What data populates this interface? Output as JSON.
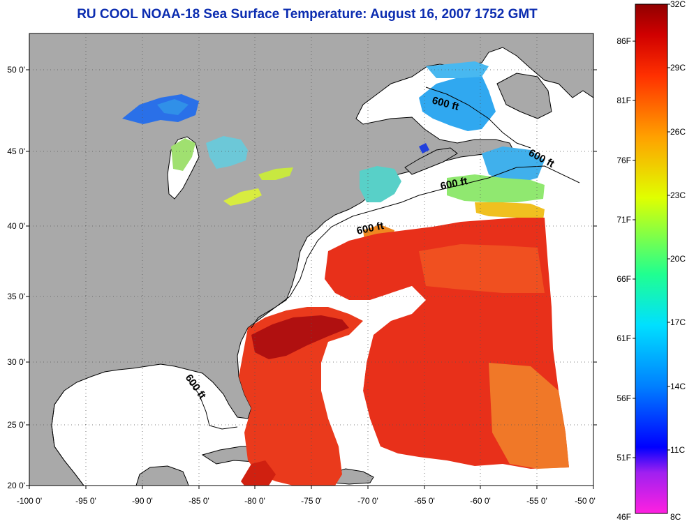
{
  "title": "RU COOL  NOAA-18  Sea Surface Temperature:  August 16, 2007 1752 GMT",
  "map": {
    "lon_ticks": [
      "-100 0'",
      "-95 0'",
      "-90 0'",
      "-85 0'",
      "-80 0'",
      "-75 0'",
      "-70 0'",
      "-65 0'",
      "-60 0'",
      "-55 0'",
      "-50 0'"
    ],
    "lat_ticks": [
      "50 0'",
      "45 0'",
      "40 0'",
      "35 0'",
      "30 0'",
      "25 0'",
      "20 0'"
    ],
    "lon_range": [
      -100,
      -50
    ],
    "lat_range": [
      20,
      52.5
    ],
    "contour_labels": [
      "600 ft",
      "600 ft",
      "600 ft",
      "600 ft",
      "600 ft"
    ],
    "colors": {
      "land": "#a9a9a9",
      "missing": "#ffffff",
      "warm": "#e02010",
      "hot": "#a00000",
      "cold": "#2a8ee8"
    }
  },
  "colorbar": {
    "celsius_labels": [
      "32C",
      "29C",
      "26C",
      "23C",
      "20C",
      "17C",
      "14C",
      "11C",
      "8C"
    ],
    "fahrenheit_labels": [
      "86F",
      "81F",
      "76F",
      "71F",
      "66F",
      "61F",
      "56F",
      "51F",
      "46F"
    ],
    "range_c": [
      8,
      32
    ],
    "stops": [
      "#ff20e0",
      "#a020f0",
      "#0000ff",
      "#0080ff",
      "#00e0ff",
      "#20ff90",
      "#e0ff00",
      "#ffa000",
      "#ff3000",
      "#d00000",
      "#900000"
    ]
  }
}
